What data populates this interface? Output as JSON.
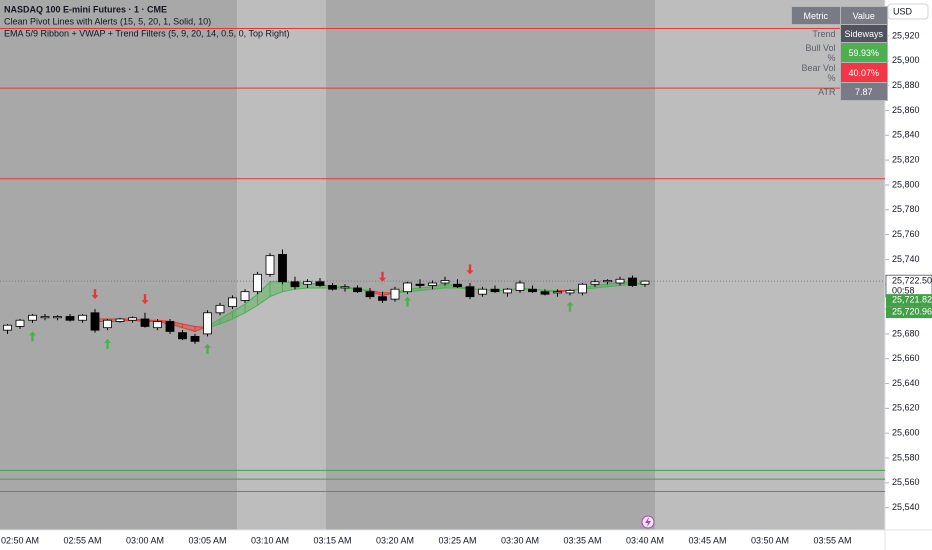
{
  "chart_data": {
    "type": "candlestick",
    "title": "NASDAQ 100 E-mini Futures · 1 · CME",
    "indicators": [
      "Clean Pivot Lines with Alerts (15, 5, 20, 1, Solid, 10)",
      "EMA 5/9 Ribbon + VWAP + Trend Filters (5, 9, 20, 14, 0.5, 0, Top Right)"
    ],
    "categories": [
      null,
      "02:50 AM",
      null,
      null,
      null,
      null,
      "02:55 AM",
      null,
      null,
      null,
      null,
      "03:00 AM",
      null,
      null,
      null,
      null,
      "03:05 AM",
      null,
      null,
      null,
      null,
      "03:10 AM",
      null,
      null,
      null,
      null,
      "03:15 AM",
      null,
      null,
      null,
      null,
      "03:20 AM",
      null,
      null,
      null,
      null,
      "03:25 AM",
      null,
      null,
      null,
      null,
      "03:30 AM",
      null,
      null,
      null,
      null,
      "03:35 AM",
      null,
      null,
      null,
      null,
      "03:40 AM",
      null,
      null,
      null,
      null,
      "03:45 AM",
      null,
      null,
      null,
      null,
      "03:50 AM",
      null,
      null,
      null,
      null,
      "03:55 AM",
      null,
      null
    ],
    "open": [
      25683,
      25686,
      25691,
      25693,
      25693,
      25694,
      25691,
      25697,
      25685,
      25690,
      25691,
      25692,
      25685,
      25690,
      25681,
      25678,
      25680,
      25697,
      25702,
      25707,
      25714,
      25728,
      25744,
      25722,
      25720,
      25722,
      25719,
      25717,
      25717,
      25714,
      25710,
      25708,
      25714,
      25720,
      25719,
      25721,
      25720,
      25718,
      25712,
      25716,
      25713,
      25715,
      25716,
      25714,
      25713,
      25713,
      25713,
      25720,
      25722,
      25721,
      25725,
      25720,
      null,
      null,
      null,
      null,
      null,
      null,
      null,
      null,
      null,
      null,
      null,
      null,
      null,
      null,
      null,
      null,
      null
    ],
    "high": [
      25688,
      25692,
      25696,
      25696,
      25695,
      25696,
      25696,
      25700,
      25692,
      25693,
      25694,
      25697,
      25692,
      25692,
      25683,
      25680,
      25699,
      25705,
      25711,
      25716,
      25730,
      25745,
      25748,
      25726,
      25724,
      25725,
      25721,
      25720,
      25719,
      25717,
      25714,
      25718,
      25722,
      25724,
      25723,
      25726,
      25724,
      25721,
      25718,
      25719,
      25717,
      25723,
      25719,
      25716,
      25716,
      25716,
      25721,
      25724,
      25724,
      25726,
      25727,
      25723,
      null,
      null,
      null,
      null,
      null,
      null,
      null,
      null,
      null,
      null,
      null,
      null,
      null,
      null,
      null,
      null,
      null
    ],
    "low": [
      25680,
      25684,
      25689,
      25691,
      25691,
      25690,
      25689,
      25681,
      25683,
      25689,
      25689,
      25685,
      25683,
      25680,
      25675,
      25672,
      25678,
      25695,
      25700,
      25705,
      25712,
      25726,
      25720,
      25716,
      25717,
      25718,
      25715,
      25714,
      25713,
      25708,
      25705,
      25706,
      25712,
      25717,
      25716,
      25719,
      25717,
      25708,
      25710,
      25713,
      25710,
      25713,
      25713,
      25711,
      25710,
      25711,
      25711,
      25718,
      25720,
      25719,
      25718,
      25718,
      null,
      null,
      null,
      null,
      null,
      null,
      null,
      null,
      null,
      null,
      null,
      null,
      null,
      null,
      null,
      null,
      null
    ],
    "close": [
      25687,
      25691,
      25695,
      25694,
      25694,
      25691,
      25695,
      25683,
      25691,
      25692,
      25693,
      25686,
      25690,
      25682,
      25676,
      25674,
      25697,
      25703,
      25709,
      25714,
      25728,
      25743,
      25722,
      25718,
      25722,
      25719,
      25716,
      25718,
      25714,
      25710,
      25707,
      25716,
      25721,
      25719,
      25721,
      25723,
      25718,
      25710,
      25716,
      25714,
      25716,
      25721,
      25714,
      25712,
      25714,
      25715,
      25720,
      25722,
      25723,
      25724,
      25719,
      25722.5,
      null,
      null,
      null,
      null,
      null,
      null,
      null,
      null,
      null,
      null,
      null,
      null,
      null,
      null,
      null,
      null,
      null
    ],
    "up_color": "#ffffff",
    "down_color": "#000000",
    "ribbon": {
      "up_color": "#4caf50",
      "down_color": "#e53935",
      "fast": [
        null,
        null,
        null,
        null,
        null,
        null,
        null,
        25690,
        25690,
        25690,
        25691,
        25690,
        25690,
        25688,
        25685,
        25682,
        25686,
        25692,
        25698,
        25704,
        25712,
        25722,
        25722,
        25721,
        25721,
        25720,
        25718,
        25718,
        25716,
        25714,
        25711,
        25713,
        25716,
        25717,
        25718,
        25720,
        25719,
        25716,
        25716,
        25715,
        25715,
        25717,
        25716,
        25715,
        25714,
        25715,
        25717,
        25719,
        25720,
        25722,
        25721,
        25721,
        null,
        null,
        null,
        null,
        null,
        null,
        null,
        null,
        null,
        null,
        null,
        null,
        null,
        null,
        null,
        null,
        null
      ],
      "slow": [
        null,
        null,
        null,
        null,
        null,
        null,
        null,
        25692,
        25692,
        25692,
        25692,
        25691,
        25691,
        25690,
        25688,
        25686,
        25685,
        25688,
        25692,
        25697,
        25703,
        25710,
        25714,
        25716,
        25717,
        25717,
        25717,
        25717,
        25716,
        25715,
        25713,
        25713,
        25714,
        25715,
        25716,
        25717,
        25717,
        25716,
        25716,
        25715,
        25715,
        25716,
        25716,
        25715,
        25715,
        25715,
        25716,
        25717,
        25718,
        25719,
        25720,
        25720,
        null,
        null,
        null,
        null,
        null,
        null,
        null,
        null,
        null,
        null,
        null,
        null,
        null,
        null,
        null,
        null,
        null
      ]
    },
    "buy_signals": {
      "color": "#4caf50",
      "values": [
        null,
        null,
        25678,
        null,
        null,
        null,
        null,
        null,
        25672,
        null,
        null,
        null,
        null,
        null,
        null,
        null,
        25668,
        null,
        null,
        null,
        null,
        null,
        null,
        null,
        null,
        null,
        null,
        null,
        null,
        null,
        null,
        null,
        25706,
        null,
        null,
        null,
        null,
        null,
        null,
        null,
        null,
        null,
        null,
        null,
        null,
        25702,
        null,
        null,
        null,
        null,
        null,
        null,
        null,
        null,
        null,
        null,
        null,
        null,
        null,
        null,
        null,
        null,
        null,
        null,
        null,
        null,
        null,
        null,
        null
      ]
    },
    "sell_signals": {
      "color": "#e53935",
      "values": [
        null,
        null,
        null,
        null,
        null,
        null,
        null,
        25712,
        null,
        null,
        null,
        25708,
        null,
        null,
        null,
        null,
        null,
        null,
        null,
        null,
        null,
        null,
        null,
        null,
        null,
        null,
        null,
        null,
        null,
        null,
        25726,
        null,
        null,
        null,
        null,
        null,
        null,
        25732,
        null,
        null,
        null,
        null,
        null,
        null,
        null,
        null,
        null,
        null,
        null,
        null,
        null,
        null,
        null,
        null,
        null,
        null,
        null,
        null,
        null,
        null,
        null,
        null,
        null,
        null,
        null,
        null,
        null,
        null,
        null
      ]
    },
    "levels": [
      {
        "value": 25926,
        "color": "#e53935"
      },
      {
        "value": 25878,
        "color": "#e53935"
      },
      {
        "value": 25805,
        "color": "#e53935"
      },
      {
        "value": 25570,
        "color": "#43a047"
      },
      {
        "value": 25563,
        "color": "#43a047"
      },
      {
        "value": 25553,
        "color": "#43a047"
      }
    ],
    "ylim": [
      25522,
      25949
    ],
    "yticks": [
      {
        "value": 25540,
        "label": "25,540"
      },
      {
        "value": 25560,
        "label": "25,560"
      },
      {
        "value": 25580,
        "label": "25,580"
      },
      {
        "value": 25600,
        "label": "25,600"
      },
      {
        "value": 25620,
        "label": "25,620"
      },
      {
        "value": 25640,
        "label": "25,640"
      },
      {
        "value": 25660,
        "label": "25,660"
      },
      {
        "value": 25680,
        "label": "25,680"
      },
      {
        "value": 25700,
        "label": "25,700"
      },
      {
        "value": 25720,
        "label": "25,720"
      },
      {
        "value": 25740,
        "label": "25,740"
      },
      {
        "value": 25760,
        "label": "25,760"
      },
      {
        "value": 25780,
        "label": "25,780"
      },
      {
        "value": 25800,
        "label": "25,800"
      },
      {
        "value": 25820,
        "label": "25,820"
      },
      {
        "value": 25840,
        "label": "25,840"
      },
      {
        "value": 25860,
        "label": "25,860"
      },
      {
        "value": 25880,
        "label": "25,880"
      },
      {
        "value": 25900,
        "label": "25,900"
      },
      {
        "value": 25920,
        "label": "25,920"
      }
    ],
    "currency": "USD",
    "last_price": {
      "value": 25722.5,
      "label": "25,722.50",
      "countdown": "00:58"
    },
    "price_labels": [
      {
        "value": 25721.82,
        "label": "25,721.82",
        "color": "#43a047"
      },
      {
        "value": 25720.96,
        "label": "25,720.96",
        "color": "#43a047"
      }
    ]
  },
  "indicator_table": {
    "headers": [
      "Metric",
      "Value"
    ],
    "rows": [
      [
        "Trend",
        "Sideways"
      ],
      [
        "Bull Vol %",
        "59.93%"
      ],
      [
        "Bear Vol %",
        "40.07%"
      ],
      [
        "ATR",
        "7.87"
      ]
    ]
  }
}
